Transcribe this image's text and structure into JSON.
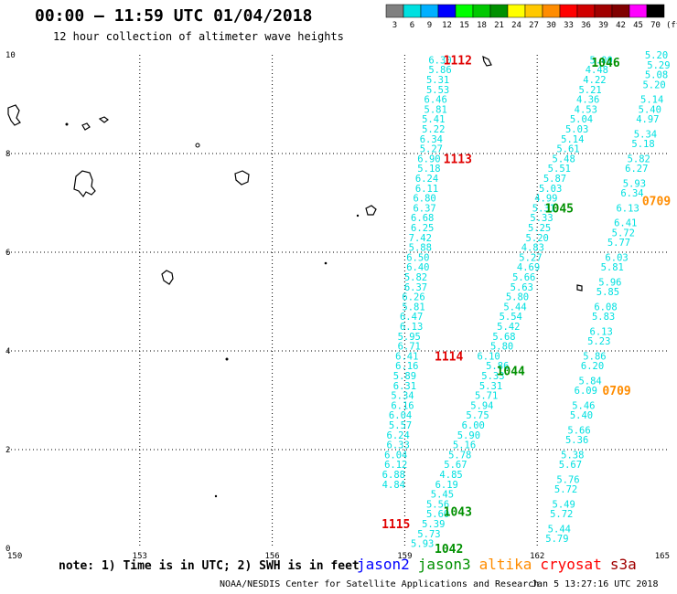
{
  "header": {
    "title": "00:00 – 11:59 UTC 01/04/2018",
    "subtitle": "12 hour collection of altimeter wave heights"
  },
  "color_scale": {
    "colors": [
      "#808080",
      "#00e0e0",
      "#00b0ff",
      "#0000ff",
      "#00ff00",
      "#00c800",
      "#009000",
      "#ffff00",
      "#ffc800",
      "#ff8c00",
      "#ff0000",
      "#d00000",
      "#a00000",
      "#800000",
      "#ff00ff",
      "#000000"
    ],
    "labels": [
      "3",
      "6",
      "9",
      "12",
      "15",
      "18",
      "21",
      "24",
      "27",
      "30",
      "33",
      "36",
      "39",
      "42",
      "45",
      "70"
    ],
    "unit": "(ft)"
  },
  "footer": {
    "note": "note: 1) Time is in UTC; 2) SWH is in feet",
    "credit": "NOAA/NESDIS Center for Satellite Applications and Research",
    "timestamp": "Jan  5 13:27:16 UTC 2018",
    "legend": [
      {
        "name": "jason2",
        "color": "#0000ff"
      },
      {
        "name": "jason3",
        "color": "#009000"
      },
      {
        "name": "altika",
        "color": "#ff8c00"
      },
      {
        "name": "cryosat",
        "color": "#ff0000"
      },
      {
        "name": "s3a",
        "color": "#a00000"
      }
    ]
  },
  "chart_data": {
    "type": "scatter",
    "xlim": [
      150,
      165
    ],
    "ylim": [
      0,
      10
    ],
    "x_ticks": [
      "150",
      "153",
      "156",
      "159",
      "162",
      "165"
    ],
    "y_ticks": [
      "0",
      "2",
      "4",
      "6",
      "8",
      "10"
    ],
    "grid": true,
    "tracks": [
      {
        "satellite": "cryosat",
        "color": "#00e0e0",
        "points": [
          {
            "x": 159.8,
            "y": 9.9,
            "v": "6.30"
          },
          {
            "x": 159.8,
            "y": 9.7,
            "v": "5.86"
          },
          {
            "x": 159.75,
            "y": 9.5,
            "v": "5.31"
          },
          {
            "x": 159.75,
            "y": 9.3,
            "v": "5.53"
          },
          {
            "x": 159.7,
            "y": 9.1,
            "v": "6.46"
          },
          {
            "x": 159.7,
            "y": 8.9,
            "v": "5.81"
          },
          {
            "x": 159.65,
            "y": 8.7,
            "v": "5.41"
          },
          {
            "x": 159.65,
            "y": 8.5,
            "v": "5.22"
          },
          {
            "x": 159.6,
            "y": 8.3,
            "v": "6.34"
          },
          {
            "x": 159.6,
            "y": 8.1,
            "v": "5.27"
          },
          {
            "x": 159.55,
            "y": 7.9,
            "v": "6.90"
          },
          {
            "x": 159.55,
            "y": 7.7,
            "v": "5.18"
          },
          {
            "x": 159.5,
            "y": 7.5,
            "v": "6.24"
          },
          {
            "x": 159.5,
            "y": 7.3,
            "v": "6.11"
          },
          {
            "x": 159.45,
            "y": 7.1,
            "v": "6.80"
          },
          {
            "x": 159.45,
            "y": 6.9,
            "v": "6.37"
          },
          {
            "x": 159.4,
            "y": 6.7,
            "v": "6.68"
          },
          {
            "x": 159.4,
            "y": 6.5,
            "v": "6.25"
          },
          {
            "x": 159.35,
            "y": 6.3,
            "v": "7.42"
          },
          {
            "x": 159.35,
            "y": 6.1,
            "v": "5.88"
          },
          {
            "x": 159.3,
            "y": 5.9,
            "v": "6.50"
          },
          {
            "x": 159.3,
            "y": 5.7,
            "v": "6.40"
          },
          {
            "x": 159.25,
            "y": 5.5,
            "v": "5.82"
          },
          {
            "x": 159.25,
            "y": 5.3,
            "v": "6.37"
          },
          {
            "x": 159.2,
            "y": 5.1,
            "v": "6.26"
          },
          {
            "x": 159.2,
            "y": 4.9,
            "v": "5.81"
          },
          {
            "x": 159.15,
            "y": 4.7,
            "v": "6.47"
          },
          {
            "x": 159.15,
            "y": 4.5,
            "v": "6.13"
          },
          {
            "x": 159.1,
            "y": 4.3,
            "v": "5.95"
          },
          {
            "x": 159.1,
            "y": 4.1,
            "v": "6.71"
          },
          {
            "x": 159.05,
            "y": 3.9,
            "v": "6.41"
          },
          {
            "x": 159.05,
            "y": 3.7,
            "v": "6.16"
          },
          {
            "x": 159.0,
            "y": 3.5,
            "v": "5.89"
          },
          {
            "x": 159.0,
            "y": 3.3,
            "v": "6.31"
          },
          {
            "x": 158.95,
            "y": 3.1,
            "v": "5.34"
          },
          {
            "x": 158.95,
            "y": 2.9,
            "v": "6.16"
          },
          {
            "x": 158.9,
            "y": 2.7,
            "v": "6.04"
          },
          {
            "x": 158.9,
            "y": 2.5,
            "v": "5.57"
          },
          {
            "x": 158.85,
            "y": 2.3,
            "v": "6.24"
          },
          {
            "x": 158.85,
            "y": 2.1,
            "v": "6.33"
          },
          {
            "x": 158.8,
            "y": 1.9,
            "v": "6.04"
          },
          {
            "x": 158.8,
            "y": 1.7,
            "v": "6.12"
          },
          {
            "x": 158.75,
            "y": 1.5,
            "v": "6.88"
          },
          {
            "x": 158.75,
            "y": 1.3,
            "v": "4.84"
          }
        ]
      },
      {
        "satellite": "jason3",
        "color": "#00e0e0",
        "points": [
          {
            "x": 159.4,
            "y": 0.1,
            "v": "5.93"
          },
          {
            "x": 159.55,
            "y": 0.3,
            "v": "5.73"
          },
          {
            "x": 159.65,
            "y": 0.5,
            "v": "5.39"
          },
          {
            "x": 159.75,
            "y": 0.7,
            "v": "5.60"
          },
          {
            "x": 159.75,
            "y": 0.9,
            "v": "5.56"
          },
          {
            "x": 159.85,
            "y": 1.1,
            "v": "5.45"
          },
          {
            "x": 159.95,
            "y": 1.3,
            "v": "6.19"
          },
          {
            "x": 160.05,
            "y": 1.5,
            "v": "4.85"
          },
          {
            "x": 160.15,
            "y": 1.7,
            "v": "5.67"
          },
          {
            "x": 160.25,
            "y": 1.9,
            "v": "5.78"
          },
          {
            "x": 160.35,
            "y": 2.1,
            "v": "5.16"
          },
          {
            "x": 160.45,
            "y": 2.3,
            "v": "5.90"
          },
          {
            "x": 160.55,
            "y": 2.5,
            "v": "6.00"
          },
          {
            "x": 160.65,
            "y": 2.7,
            "v": "5.75"
          },
          {
            "x": 160.75,
            "y": 2.9,
            "v": "5.94"
          },
          {
            "x": 160.85,
            "y": 3.1,
            "v": "5.71"
          },
          {
            "x": 160.95,
            "y": 3.3,
            "v": "5.31"
          },
          {
            "x": 161.0,
            "y": 3.5,
            "v": "5.33"
          },
          {
            "x": 161.1,
            "y": 3.7,
            "v": "5.86"
          },
          {
            "x": 160.9,
            "y": 3.9,
            "v": "6.10"
          },
          {
            "x": 161.2,
            "y": 4.1,
            "v": "5.80"
          },
          {
            "x": 161.25,
            "y": 4.3,
            "v": "5.68"
          },
          {
            "x": 161.35,
            "y": 4.5,
            "v": "5.42"
          },
          {
            "x": 161.4,
            "y": 4.7,
            "v": "5.54"
          },
          {
            "x": 161.5,
            "y": 4.9,
            "v": "5.44"
          },
          {
            "x": 161.55,
            "y": 5.1,
            "v": "5.80"
          },
          {
            "x": 161.65,
            "y": 5.3,
            "v": "5.63"
          },
          {
            "x": 161.7,
            "y": 5.5,
            "v": "5.66"
          },
          {
            "x": 161.8,
            "y": 5.7,
            "v": "4.69"
          },
          {
            "x": 161.85,
            "y": 5.9,
            "v": "5.27"
          },
          {
            "x": 161.9,
            "y": 6.1,
            "v": "4.83"
          },
          {
            "x": 162.0,
            "y": 6.3,
            "v": "5.20"
          },
          {
            "x": 162.05,
            "y": 6.5,
            "v": "5.25"
          },
          {
            "x": 162.1,
            "y": 6.7,
            "v": "5.33"
          },
          {
            "x": 162.15,
            "y": 6.9,
            "v": "5.31"
          },
          {
            "x": 162.2,
            "y": 7.1,
            "v": "4.99"
          },
          {
            "x": 162.3,
            "y": 7.3,
            "v": "5.03"
          },
          {
            "x": 162.4,
            "y": 7.5,
            "v": "5.87"
          },
          {
            "x": 162.5,
            "y": 7.7,
            "v": "5.51"
          },
          {
            "x": 162.6,
            "y": 7.9,
            "v": "5.48"
          },
          {
            "x": 162.7,
            "y": 8.1,
            "v": "5.61"
          },
          {
            "x": 162.8,
            "y": 8.3,
            "v": "5.14"
          },
          {
            "x": 162.9,
            "y": 8.5,
            "v": "5.03"
          },
          {
            "x": 163.0,
            "y": 8.7,
            "v": "5.04"
          },
          {
            "x": 163.1,
            "y": 8.9,
            "v": "4.53"
          },
          {
            "x": 163.15,
            "y": 9.1,
            "v": "4.36"
          },
          {
            "x": 163.2,
            "y": 9.3,
            "v": "5.21"
          },
          {
            "x": 163.3,
            "y": 9.5,
            "v": "4.22"
          },
          {
            "x": 163.35,
            "y": 9.7,
            "v": "4.48"
          },
          {
            "x": 163.45,
            "y": 9.9,
            "v": "5.00"
          }
        ]
      },
      {
        "satellite": "jason3",
        "color": "#00e0e0",
        "points": [
          {
            "x": 164.7,
            "y": 10.0,
            "v": "5.20"
          },
          {
            "x": 164.75,
            "y": 9.8,
            "v": "5.29"
          },
          {
            "x": 164.7,
            "y": 9.6,
            "v": "5.08"
          },
          {
            "x": 164.65,
            "y": 9.4,
            "v": "5.20"
          },
          {
            "x": 164.6,
            "y": 9.1,
            "v": "5.14"
          },
          {
            "x": 164.55,
            "y": 8.9,
            "v": "5.40"
          },
          {
            "x": 164.5,
            "y": 8.7,
            "v": "4.97"
          },
          {
            "x": 164.45,
            "y": 8.4,
            "v": "5.34"
          },
          {
            "x": 164.4,
            "y": 8.2,
            "v": "5.18"
          },
          {
            "x": 164.3,
            "y": 7.9,
            "v": "5.82"
          },
          {
            "x": 164.25,
            "y": 7.7,
            "v": "6.27"
          },
          {
            "x": 164.2,
            "y": 7.4,
            "v": "5.93"
          },
          {
            "x": 164.15,
            "y": 7.2,
            "v": "6.34"
          },
          {
            "x": 164.05,
            "y": 6.9,
            "v": "6.13"
          },
          {
            "x": 164.0,
            "y": 6.6,
            "v": "6.41"
          },
          {
            "x": 163.95,
            "y": 6.4,
            "v": "5.72"
          },
          {
            "x": 163.85,
            "y": 6.2,
            "v": "5.77"
          },
          {
            "x": 163.8,
            "y": 5.9,
            "v": "6.03"
          },
          {
            "x": 163.7,
            "y": 5.7,
            "v": "5.81"
          },
          {
            "x": 163.65,
            "y": 5.4,
            "v": "5.96"
          },
          {
            "x": 163.6,
            "y": 5.2,
            "v": "5.85"
          },
          {
            "x": 163.55,
            "y": 4.9,
            "v": "6.08"
          },
          {
            "x": 163.5,
            "y": 4.7,
            "v": "5.83"
          },
          {
            "x": 163.45,
            "y": 4.4,
            "v": "6.13"
          },
          {
            "x": 163.4,
            "y": 4.2,
            "v": "5.23"
          },
          {
            "x": 163.3,
            "y": 3.9,
            "v": "5.86"
          },
          {
            "x": 163.25,
            "y": 3.7,
            "v": "6.20"
          },
          {
            "x": 163.2,
            "y": 3.4,
            "v": "5.84"
          },
          {
            "x": 163.1,
            "y": 3.2,
            "v": "6.09"
          },
          {
            "x": 163.05,
            "y": 2.9,
            "v": "5.46"
          },
          {
            "x": 163.0,
            "y": 2.7,
            "v": "5.40"
          },
          {
            "x": 162.95,
            "y": 2.4,
            "v": "5.66"
          },
          {
            "x": 162.9,
            "y": 2.2,
            "v": "5.36"
          },
          {
            "x": 162.8,
            "y": 1.9,
            "v": "5.38"
          },
          {
            "x": 162.75,
            "y": 1.7,
            "v": "5.67"
          },
          {
            "x": 162.7,
            "y": 1.4,
            "v": "5.76"
          },
          {
            "x": 162.65,
            "y": 1.2,
            "v": "5.72"
          },
          {
            "x": 162.6,
            "y": 0.9,
            "v": "5.49"
          },
          {
            "x": 162.55,
            "y": 0.7,
            "v": "5.72"
          },
          {
            "x": 162.5,
            "y": 0.4,
            "v": "5.44"
          },
          {
            "x": 162.45,
            "y": 0.2,
            "v": "5.79"
          }
        ]
      }
    ],
    "pass_labels": [
      {
        "text": "1112",
        "x": 160.2,
        "y": 9.9,
        "color": "#e00000"
      },
      {
        "text": "1113",
        "x": 160.2,
        "y": 7.9,
        "color": "#e00000"
      },
      {
        "text": "1114",
        "x": 160.0,
        "y": 3.9,
        "color": "#e00000"
      },
      {
        "text": "1115",
        "x": 158.8,
        "y": 0.5,
        "color": "#e00000"
      },
      {
        "text": "1046",
        "x": 163.55,
        "y": 9.85,
        "color": "#009000"
      },
      {
        "text": "1045",
        "x": 162.5,
        "y": 6.9,
        "color": "#009000"
      },
      {
        "text": "1044",
        "x": 161.4,
        "y": 3.6,
        "color": "#009000"
      },
      {
        "text": "1043",
        "x": 160.2,
        "y": 0.75,
        "color": "#009000"
      },
      {
        "text": "1042",
        "x": 160.0,
        "y": 0.0,
        "color": "#009000"
      },
      {
        "text": "0709",
        "x": 164.7,
        "y": 7.05,
        "color": "#ff8c00"
      },
      {
        "text": "0709",
        "x": 163.8,
        "y": 3.2,
        "color": "#ff8c00"
      }
    ]
  }
}
